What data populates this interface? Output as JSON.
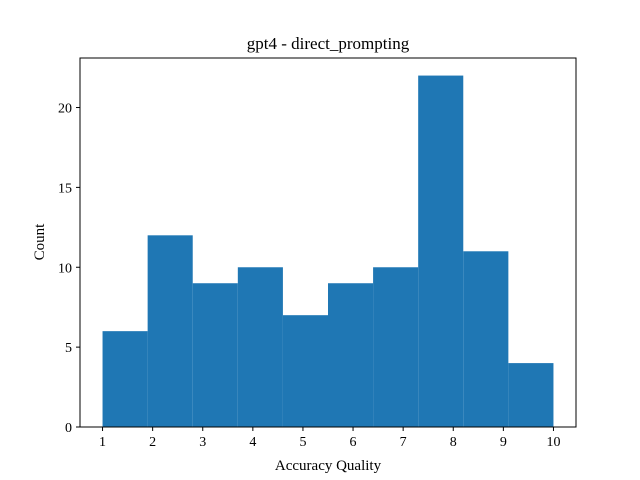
{
  "chart_data": {
    "type": "bar",
    "title": "gpt4 - direct_prompting",
    "xlabel": "Accuracy Quality",
    "ylabel": "Count",
    "bin_edges": [
      1.0,
      1.9,
      2.8,
      3.7,
      4.6,
      5.5,
      6.4,
      7.3,
      8.2,
      9.1,
      10.0
    ],
    "values": [
      6,
      12,
      9,
      10,
      7,
      9,
      10,
      22,
      11,
      4
    ],
    "xlim": [
      0.55,
      10.45
    ],
    "ylim": [
      0,
      23.1
    ],
    "xticks": [
      1,
      2,
      3,
      4,
      5,
      6,
      7,
      8,
      9,
      10
    ],
    "yticks": [
      0,
      5,
      10,
      15,
      20
    ],
    "grid": false,
    "bar_color": "#1f77b4"
  }
}
